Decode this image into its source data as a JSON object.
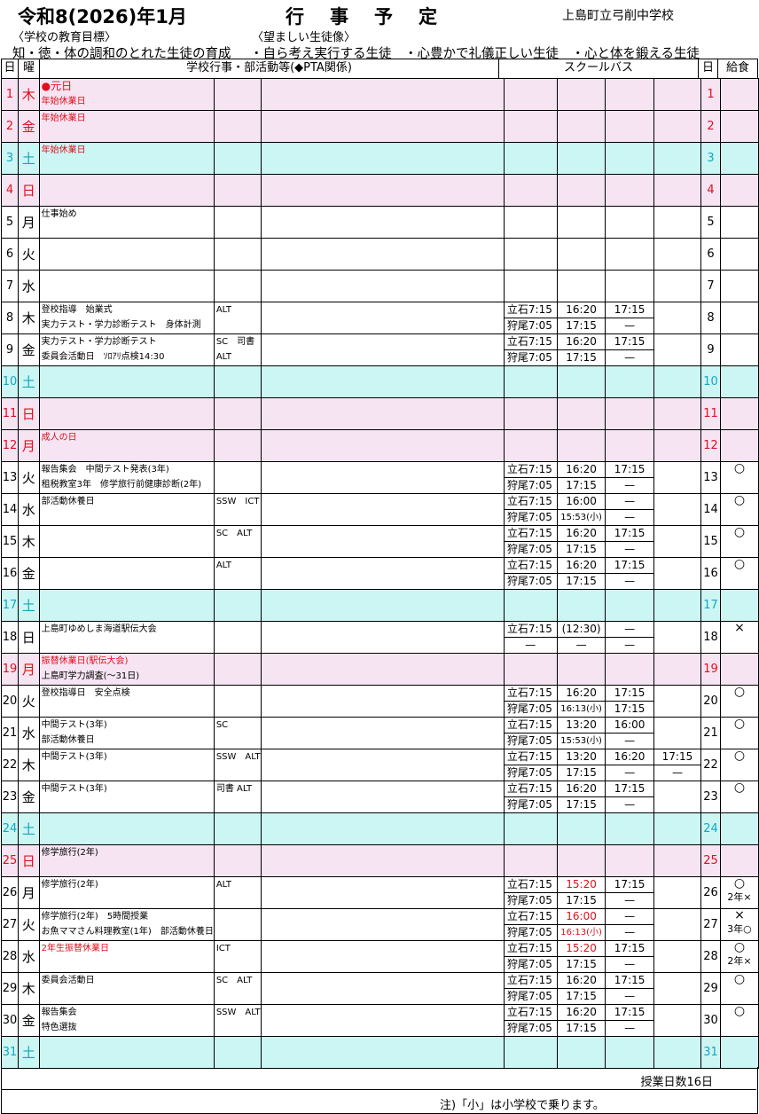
{
  "title": "令和8(2026)年1月",
  "heading": "行事予定",
  "school": "上島町立弓削中学校",
  "goal_label": "〈学校の教育目標〉",
  "goal_text": "知・徳・体の調和のとれた生徒の育成",
  "ideal_label": "〈望ましい生徒像〉",
  "ideal_text": "・自ら考え実行する生徒　・心豊かで礼儀正しい生徒　・心と体を鍛える生徒",
  "headers": {
    "day": "日",
    "weekday": "曜",
    "events": "学校行事・部活動等(◆PTA関係)",
    "bus": "スクールバス",
    "day2": "日",
    "meal": "給食"
  },
  "days": [
    {
      "d": "1",
      "w": "木",
      "type": "pink",
      "events": [
        {
          "t": "●元日",
          "red": true,
          "big": true
        },
        {
          "t": "年始休業日",
          "red": true
        }
      ],
      "staff": [],
      "bus": [],
      "meal": ""
    },
    {
      "d": "2",
      "w": "金",
      "type": "pink",
      "events": [
        {
          "t": "年始休業日",
          "red": true
        }
      ],
      "staff": [],
      "bus": [],
      "meal": ""
    },
    {
      "d": "3",
      "w": "土",
      "type": "cyan",
      "events": [
        {
          "t": "年始休業日",
          "red": true
        }
      ],
      "staff": [],
      "bus": [],
      "meal": ""
    },
    {
      "d": "4",
      "w": "日",
      "type": "pink",
      "events": [],
      "staff": [],
      "bus": [],
      "meal": ""
    },
    {
      "d": "5",
      "w": "月",
      "type": "",
      "events": [
        {
          "t": "仕事始め"
        }
      ],
      "staff": [],
      "bus": [],
      "meal": ""
    },
    {
      "d": "6",
      "w": "火",
      "type": "",
      "events": [],
      "staff": [],
      "bus": [],
      "meal": ""
    },
    {
      "d": "7",
      "w": "水",
      "type": "",
      "events": [],
      "staff": [],
      "bus": [],
      "meal": ""
    },
    {
      "d": "8",
      "w": "木",
      "type": "",
      "events": [
        {
          "t": "登校指導　始業式"
        },
        {
          "t": "実力テスト・学力診断テスト　身体計測"
        }
      ],
      "staff": [
        "ALT",
        ""
      ],
      "bus": [
        [
          "立石7:15",
          "16:20",
          "17:15",
          ""
        ],
        [
          "狩尾7:05",
          "17:15",
          "—",
          ""
        ]
      ],
      "meal": ""
    },
    {
      "d": "9",
      "w": "金",
      "type": "",
      "events": [
        {
          "t": "実力テスト・学力診断テスト"
        },
        {
          "t": "委員会活動日　ｿﾛｱﾘ点検14:30"
        }
      ],
      "staff": [
        "SC　司書",
        "ALT"
      ],
      "bus": [
        [
          "立石7:15",
          "16:20",
          "17:15",
          ""
        ],
        [
          "狩尾7:05",
          "17:15",
          "—",
          ""
        ]
      ],
      "meal": ""
    },
    {
      "d": "10",
      "w": "土",
      "type": "cyan",
      "events": [],
      "staff": [],
      "bus": [],
      "meal": ""
    },
    {
      "d": "11",
      "w": "日",
      "type": "pink",
      "events": [],
      "staff": [],
      "bus": [],
      "meal": ""
    },
    {
      "d": "12",
      "w": "月",
      "type": "pink",
      "events": [
        {
          "t": "成人の日",
          "red": true
        }
      ],
      "staff": [],
      "bus": [],
      "meal": ""
    },
    {
      "d": "13",
      "w": "火",
      "type": "",
      "events": [
        {
          "t": "報告集会　中間テスト発表(3年)"
        },
        {
          "t": "租税教室3年　修学旅行前健康診断(2年)"
        }
      ],
      "staff": [
        "",
        ""
      ],
      "bus": [
        [
          "立石7:15",
          "16:20",
          "17:15",
          ""
        ],
        [
          "狩尾7:05",
          "17:15",
          "—",
          ""
        ]
      ],
      "meal": "○"
    },
    {
      "d": "14",
      "w": "水",
      "type": "",
      "events": [
        {
          "t": "部活動休養日"
        }
      ],
      "staff": [
        "SSW　ICT",
        ""
      ],
      "bus": [
        [
          "立石7:15",
          "16:00",
          "—",
          ""
        ],
        [
          "狩尾7:05",
          "15:53(小)",
          "—",
          ""
        ]
      ],
      "meal": "○"
    },
    {
      "d": "15",
      "w": "木",
      "type": "",
      "events": [],
      "staff": [
        "SC　ALT",
        ""
      ],
      "bus": [
        [
          "立石7:15",
          "16:20",
          "17:15",
          ""
        ],
        [
          "狩尾7:05",
          "17:15",
          "—",
          ""
        ]
      ],
      "meal": "○"
    },
    {
      "d": "16",
      "w": "金",
      "type": "",
      "events": [],
      "staff": [
        "ALT",
        ""
      ],
      "bus": [
        [
          "立石7:15",
          "16:20",
          "17:15",
          ""
        ],
        [
          "狩尾7:05",
          "17:15",
          "—",
          ""
        ]
      ],
      "meal": "○"
    },
    {
      "d": "17",
      "w": "土",
      "type": "cyan",
      "events": [],
      "staff": [],
      "bus": [],
      "meal": ""
    },
    {
      "d": "18",
      "w": "日",
      "type": "",
      "events": [
        {
          "t": "上島町ゆめしま海道駅伝大会"
        }
      ],
      "staff": [
        "",
        ""
      ],
      "bus": [
        [
          "立石7:15",
          "(12:30)",
          "—",
          ""
        ],
        [
          "—",
          "—",
          "—",
          ""
        ]
      ],
      "meal": "×"
    },
    {
      "d": "19",
      "w": "月",
      "type": "pink",
      "events": [
        {
          "t": "振替休業日(駅伝大会)",
          "red": true
        },
        {
          "t": "上島町学力調査(～31日)"
        }
      ],
      "staff": [],
      "bus": [],
      "meal": ""
    },
    {
      "d": "20",
      "w": "火",
      "type": "",
      "events": [
        {
          "t": "登校指導日　安全点検"
        }
      ],
      "staff": [
        "",
        ""
      ],
      "bus": [
        [
          "立石7:15",
          "16:20",
          "17:15",
          ""
        ],
        [
          "狩尾7:05",
          "16:13(小)",
          "17:15",
          ""
        ]
      ],
      "meal": "○"
    },
    {
      "d": "21",
      "w": "水",
      "type": "",
      "events": [
        {
          "t": "中間テスト(3年)"
        },
        {
          "t": "部活動休養日"
        }
      ],
      "staff": [
        "SC",
        ""
      ],
      "bus": [
        [
          "立石7:15",
          "13:20",
          "16:00",
          ""
        ],
        [
          "狩尾7:05",
          "15:53(小)",
          "—",
          ""
        ]
      ],
      "meal": "○"
    },
    {
      "d": "22",
      "w": "木",
      "type": "",
      "events": [
        {
          "t": "中間テスト(3年)"
        }
      ],
      "staff": [
        "SSW　ALT",
        ""
      ],
      "bus": [
        [
          "立石7:15",
          "13:20",
          "16:20",
          "17:15"
        ],
        [
          "狩尾7:05",
          "17:15",
          "—",
          "—"
        ]
      ],
      "meal": "○"
    },
    {
      "d": "23",
      "w": "金",
      "type": "",
      "events": [
        {
          "t": "中間テスト(3年)"
        }
      ],
      "staff": [
        "司書 ALT",
        ""
      ],
      "bus": [
        [
          "立石7:15",
          "16:20",
          "17:15",
          ""
        ],
        [
          "狩尾7:05",
          "17:15",
          "—",
          ""
        ]
      ],
      "meal": "○"
    },
    {
      "d": "24",
      "w": "土",
      "type": "cyan",
      "events": [],
      "staff": [],
      "bus": [],
      "meal": ""
    },
    {
      "d": "25",
      "w": "日",
      "type": "pink",
      "events": [
        {
          "t": "修学旅行(2年)"
        }
      ],
      "staff": [],
      "bus": [],
      "meal": ""
    },
    {
      "d": "26",
      "w": "月",
      "type": "",
      "events": [
        {
          "t": "修学旅行(2年)"
        }
      ],
      "staff": [
        "ALT",
        ""
      ],
      "bus": [
        [
          "立石7:15",
          "15:20",
          "17:15",
          ""
        ],
        [
          "狩尾7:05",
          "17:15",
          "—",
          ""
        ]
      ],
      "busred": [
        [
          false,
          true,
          false,
          false
        ],
        [
          false,
          false,
          false,
          false
        ]
      ],
      "meal": "○",
      "meal2": "2年×"
    },
    {
      "d": "27",
      "w": "火",
      "type": "",
      "events": [
        {
          "t": "修学旅行(2年)　5時間授業"
        },
        {
          "t": "お魚ママさん料理教室(1年)　部活動休養日"
        }
      ],
      "staff": [
        "",
        ""
      ],
      "bus": [
        [
          "立石7:15",
          "16:00",
          "—",
          ""
        ],
        [
          "狩尾7:05",
          "16:13(小)",
          "—",
          ""
        ]
      ],
      "busred": [
        [
          false,
          true,
          false,
          false
        ],
        [
          false,
          true,
          false,
          false
        ]
      ],
      "meal": "×",
      "meal2": "3年○"
    },
    {
      "d": "28",
      "w": "水",
      "type": "",
      "events": [
        {
          "t": "2年生振替休業日",
          "red": true
        }
      ],
      "staff": [
        "ICT",
        ""
      ],
      "bus": [
        [
          "立石7:15",
          "15:20",
          "17:15",
          ""
        ],
        [
          "狩尾7:05",
          "17:15",
          "—",
          ""
        ]
      ],
      "busred": [
        [
          false,
          true,
          false,
          false
        ],
        [
          false,
          false,
          false,
          false
        ]
      ],
      "meal": "○",
      "meal2": "2年×"
    },
    {
      "d": "29",
      "w": "木",
      "type": "",
      "events": [
        {
          "t": "委員会活動日"
        }
      ],
      "staff": [
        "SC　ALT",
        ""
      ],
      "bus": [
        [
          "立石7:15",
          "16:20",
          "17:15",
          ""
        ],
        [
          "狩尾7:05",
          "17:15",
          "—",
          ""
        ]
      ],
      "meal": "○"
    },
    {
      "d": "30",
      "w": "金",
      "type": "",
      "events": [
        {
          "t": "報告集会"
        },
        {
          "t": "特色選抜"
        }
      ],
      "staff": [
        "SSW　ALT",
        ""
      ],
      "bus": [
        [
          "立石7:15",
          "16:20",
          "17:15",
          ""
        ],
        [
          "狩尾7:05",
          "17:15",
          "—",
          ""
        ]
      ],
      "meal": "○"
    },
    {
      "d": "31",
      "w": "土",
      "type": "cyan",
      "events": [],
      "staff": [],
      "bus": [],
      "meal": ""
    }
  ],
  "class_days": "授業日数16日",
  "note": "注)「小」は小学校で乗ります。"
}
